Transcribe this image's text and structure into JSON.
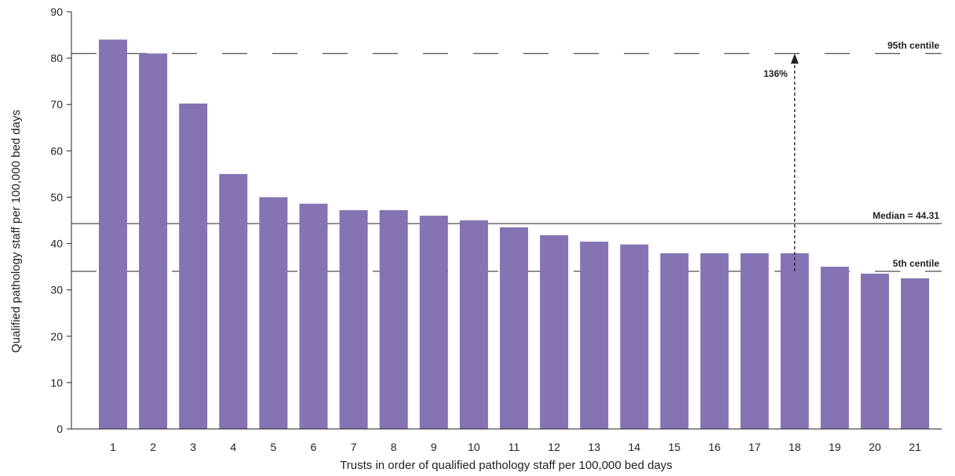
{
  "chart_data": {
    "type": "bar",
    "categories": [
      "1",
      "2",
      "3",
      "4",
      "5",
      "6",
      "7",
      "8",
      "9",
      "10",
      "11",
      "12",
      "13",
      "14",
      "15",
      "16",
      "17",
      "18",
      "19",
      "20",
      "21"
    ],
    "values": [
      84.0,
      81.0,
      70.2,
      55.0,
      50.0,
      48.6,
      47.2,
      47.2,
      46.0,
      45.0,
      43.5,
      41.8,
      40.4,
      39.8,
      37.9,
      37.9,
      37.9,
      37.9,
      35.0,
      33.5,
      32.5
    ],
    "xlabel": "Trusts in order of qualified pathology staff per 100,000 bed days",
    "ylabel": "Qualified pathology staff per 100,000 bed days",
    "ylim": [
      0,
      90
    ],
    "yticks": [
      0,
      10,
      20,
      30,
      40,
      50,
      60,
      70,
      80,
      90
    ],
    "bar_color": "#8573b4",
    "grid": false,
    "reference_lines": [
      {
        "label": "95th centile",
        "value": 81,
        "style": "dashed"
      },
      {
        "label": "Median = 44.31",
        "value": 44.31,
        "style": "solid"
      },
      {
        "label": "5th centile",
        "value": 34,
        "style": "dashed"
      }
    ],
    "annotation": {
      "text": "136%",
      "category": "18",
      "from_value": 34,
      "to_value": 81
    }
  }
}
